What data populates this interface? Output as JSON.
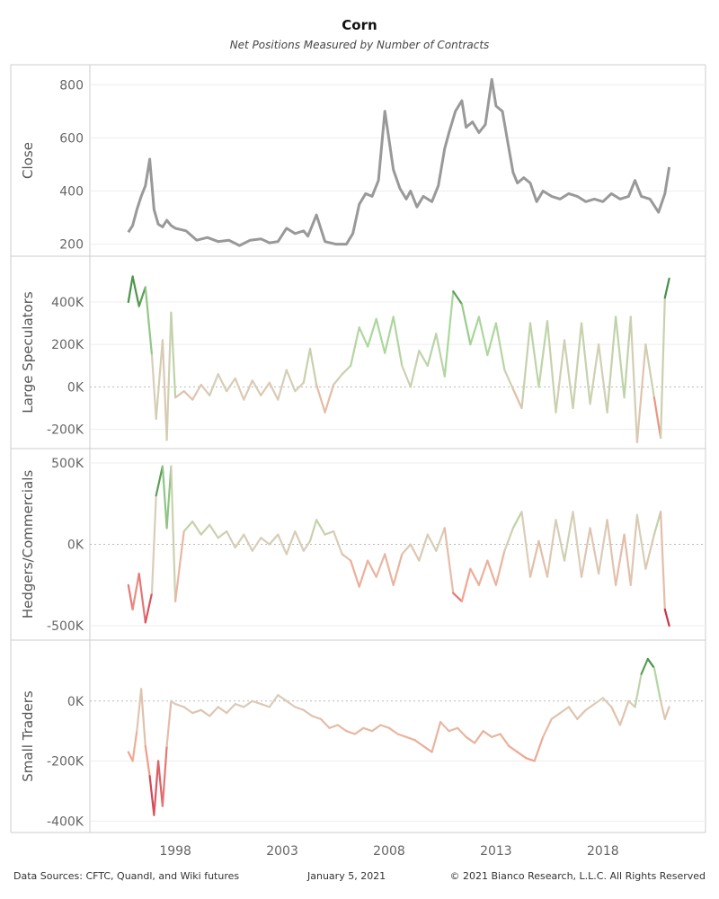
{
  "header": {
    "title": "Corn",
    "subtitle": "Net Positions Measured by Number of Contracts"
  },
  "footer": {
    "sources": "Data Sources: CFTC, Quandl, and Wiki futures",
    "date": "January 5, 2021",
    "copyright": "© 2021 Bianco Research, L.L.C. All Rights Reserved"
  },
  "colors": {
    "close_line": "#999999",
    "positive_dark": "#2e7d32",
    "positive_light": "#a8d89a",
    "neutral": "#d9cdb8",
    "negative_light": "#f2a48f",
    "negative_dark": "#c2163a",
    "gridline": "#eeeeee",
    "zeroline": "#bbbbbb",
    "border": "#cccccc"
  },
  "chart_data": {
    "type": "line",
    "x_axis": {
      "ticks": [
        "1998",
        "2003",
        "2008",
        "2013",
        "2018"
      ],
      "tick_values": [
        1998,
        2003,
        2008,
        2013,
        2018
      ],
      "range": [
        1994.0,
        2022.8
      ]
    },
    "panels": [
      {
        "ylabel": "Close",
        "ylim": [
          175,
          855
        ],
        "yticks": [
          200,
          400,
          600,
          800
        ],
        "ytick_labels": [
          "200",
          "400",
          "600",
          "800"
        ],
        "color_mode": "grey",
        "series": {
          "x": [
            1995.8,
            1996.0,
            1996.2,
            1996.4,
            1996.6,
            1996.8,
            1997.0,
            1997.2,
            1997.4,
            1997.6,
            1997.8,
            1998.0,
            1998.5,
            1999.0,
            1999.5,
            2000.0,
            2000.5,
            2001.0,
            2001.5,
            2002.0,
            2002.4,
            2002.8,
            2003.2,
            2003.6,
            2004.0,
            2004.2,
            2004.6,
            2005.0,
            2005.5,
            2006.0,
            2006.3,
            2006.6,
            2006.9,
            2007.2,
            2007.5,
            2007.8,
            2008.0,
            2008.2,
            2008.5,
            2008.8,
            2009.0,
            2009.3,
            2009.6,
            2010.0,
            2010.3,
            2010.6,
            2010.8,
            2011.1,
            2011.4,
            2011.6,
            2011.9,
            2012.2,
            2012.5,
            2012.8,
            2013.0,
            2013.3,
            2013.6,
            2013.8,
            2014.0,
            2014.3,
            2014.6,
            2014.9,
            2015.2,
            2015.6,
            2016.0,
            2016.4,
            2016.8,
            2017.2,
            2017.6,
            2018.0,
            2018.4,
            2018.8,
            2019.2,
            2019.5,
            2019.8,
            2020.2,
            2020.6,
            2020.9,
            2021.1
          ],
          "y": [
            245,
            270,
            330,
            380,
            420,
            520,
            330,
            275,
            265,
            290,
            270,
            260,
            250,
            215,
            225,
            210,
            215,
            195,
            215,
            220,
            205,
            210,
            260,
            240,
            250,
            230,
            310,
            210,
            200,
            200,
            240,
            350,
            390,
            380,
            440,
            700,
            590,
            480,
            410,
            370,
            400,
            340,
            380,
            360,
            420,
            560,
            620,
            700,
            740,
            640,
            660,
            620,
            650,
            820,
            720,
            700,
            560,
            470,
            430,
            450,
            430,
            360,
            400,
            380,
            370,
            390,
            380,
            360,
            370,
            360,
            390,
            370,
            380,
            440,
            380,
            370,
            320,
            390,
            490
          ]
        }
      },
      {
        "ylabel": "Large Speculators",
        "ylim": [
          -265000,
          590000
        ],
        "yticks": [
          -200000,
          0,
          200000,
          400000
        ],
        "ytick_labels": [
          "-200K",
          "0K",
          "200K",
          "400K"
        ],
        "color_mode": "diverging",
        "series": {
          "x": [
            1995.8,
            1996.0,
            1996.3,
            1996.6,
            1996.9,
            1997.1,
            1997.4,
            1997.6,
            1997.8,
            1998.0,
            1998.4,
            1998.8,
            1999.2,
            1999.6,
            2000.0,
            2000.4,
            2000.8,
            2001.2,
            2001.6,
            2002.0,
            2002.4,
            2002.8,
            2003.2,
            2003.6,
            2004.0,
            2004.3,
            2004.6,
            2005.0,
            2005.4,
            2005.8,
            2006.2,
            2006.6,
            2007.0,
            2007.4,
            2007.8,
            2008.2,
            2008.6,
            2009.0,
            2009.4,
            2009.8,
            2010.2,
            2010.6,
            2011.0,
            2011.4,
            2011.8,
            2012.2,
            2012.6,
            2013.0,
            2013.4,
            2013.8,
            2014.2,
            2014.6,
            2015.0,
            2015.4,
            2015.8,
            2016.2,
            2016.6,
            2017.0,
            2017.4,
            2017.8,
            2018.2,
            2018.6,
            2019.0,
            2019.3,
            2019.6,
            2020.0,
            2020.4,
            2020.7,
            2020.9,
            2021.1
          ],
          "y": [
            400000,
            520000,
            380000,
            470000,
            150000,
            -150000,
            220000,
            -250000,
            350000,
            -50000,
            -20000,
            -60000,
            10000,
            -40000,
            60000,
            -20000,
            40000,
            -60000,
            30000,
            -40000,
            20000,
            -60000,
            80000,
            -20000,
            20000,
            180000,
            10000,
            -120000,
            10000,
            60000,
            100000,
            280000,
            190000,
            320000,
            160000,
            330000,
            100000,
            0,
            170000,
            100000,
            250000,
            50000,
            450000,
            390000,
            200000,
            330000,
            150000,
            300000,
            80000,
            -10000,
            -100000,
            300000,
            0,
            310000,
            -120000,
            220000,
            -100000,
            300000,
            -80000,
            200000,
            -120000,
            330000,
            -50000,
            330000,
            -260000,
            200000,
            -50000,
            -240000,
            420000,
            510000
          ]
        }
      },
      {
        "ylabel": "Hedgers/Commercials",
        "ylim": [
          -555000,
          555000
        ],
        "yticks": [
          -500000,
          0,
          500000
        ],
        "ytick_labels": [
          "-500K",
          "0K",
          "500K"
        ],
        "color_mode": "diverging",
        "series": {
          "x": [
            1995.8,
            1996.0,
            1996.3,
            1996.6,
            1996.9,
            1997.1,
            1997.4,
            1997.6,
            1997.8,
            1998.0,
            1998.4,
            1998.8,
            1999.2,
            1999.6,
            2000.0,
            2000.4,
            2000.8,
            2001.2,
            2001.6,
            2002.0,
            2002.4,
            2002.8,
            2003.2,
            2003.6,
            2004.0,
            2004.3,
            2004.6,
            2005.0,
            2005.4,
            2005.8,
            2006.2,
            2006.6,
            2007.0,
            2007.4,
            2007.8,
            2008.2,
            2008.6,
            2009.0,
            2009.4,
            2009.8,
            2010.2,
            2010.6,
            2011.0,
            2011.4,
            2011.8,
            2012.2,
            2012.6,
            2013.0,
            2013.4,
            2013.8,
            2014.2,
            2014.6,
            2015.0,
            2015.4,
            2015.8,
            2016.2,
            2016.6,
            2017.0,
            2017.4,
            2017.8,
            2018.2,
            2018.6,
            2019.0,
            2019.3,
            2019.6,
            2020.0,
            2020.4,
            2020.7,
            2020.9,
            2021.1
          ],
          "y": [
            -250000,
            -400000,
            -180000,
            -480000,
            -300000,
            300000,
            480000,
            100000,
            480000,
            -350000,
            80000,
            140000,
            60000,
            120000,
            40000,
            80000,
            -20000,
            60000,
            -40000,
            40000,
            0,
            60000,
            -60000,
            80000,
            -40000,
            20000,
            150000,
            60000,
            80000,
            -60000,
            -100000,
            -260000,
            -100000,
            -200000,
            -60000,
            -250000,
            -60000,
            0,
            -100000,
            60000,
            -40000,
            100000,
            -300000,
            -350000,
            -150000,
            -250000,
            -100000,
            -250000,
            -40000,
            100000,
            200000,
            -200000,
            20000,
            -200000,
            150000,
            -100000,
            200000,
            -200000,
            100000,
            -180000,
            150000,
            -250000,
            60000,
            -250000,
            180000,
            -150000,
            60000,
            200000,
            -400000,
            -500000
          ]
        }
      },
      {
        "ylabel": "Small Traders",
        "ylim": [
          -420000,
          185000
        ],
        "yticks": [
          -400000,
          -200000,
          0
        ],
        "ytick_labels": [
          "-400K",
          "-200K",
          "0K"
        ],
        "color_mode": "diverging",
        "series": {
          "x": [
            1995.8,
            1996.0,
            1996.2,
            1996.4,
            1996.6,
            1996.8,
            1997.0,
            1997.2,
            1997.4,
            1997.6,
            1997.8,
            1998.0,
            1998.4,
            1998.8,
            1999.2,
            1999.6,
            2000.0,
            2000.4,
            2000.8,
            2001.2,
            2001.6,
            2002.0,
            2002.4,
            2002.8,
            2003.2,
            2003.6,
            2004.0,
            2004.4,
            2004.8,
            2005.2,
            2005.6,
            2006.0,
            2006.4,
            2006.8,
            2007.2,
            2007.6,
            2008.0,
            2008.4,
            2008.8,
            2009.2,
            2009.6,
            2010.0,
            2010.4,
            2010.8,
            2011.2,
            2011.6,
            2012.0,
            2012.4,
            2012.8,
            2013.2,
            2013.6,
            2014.0,
            2014.4,
            2014.8,
            2015.2,
            2015.6,
            2016.0,
            2016.4,
            2016.8,
            2017.2,
            2017.6,
            2018.0,
            2018.4,
            2018.8,
            2019.2,
            2019.5,
            2019.8,
            2020.1,
            2020.4,
            2020.7,
            2020.9,
            2021.1
          ],
          "y": [
            -170000,
            -200000,
            -100000,
            40000,
            -150000,
            -250000,
            -380000,
            -200000,
            -350000,
            -150000,
            0,
            -10000,
            -20000,
            -40000,
            -30000,
            -50000,
            -20000,
            -40000,
            -10000,
            -20000,
            0,
            -10000,
            -20000,
            20000,
            0,
            -20000,
            -30000,
            -50000,
            -60000,
            -90000,
            -80000,
            -100000,
            -110000,
            -90000,
            -100000,
            -80000,
            -90000,
            -110000,
            -120000,
            -130000,
            -150000,
            -170000,
            -70000,
            -100000,
            -90000,
            -120000,
            -140000,
            -100000,
            -120000,
            -110000,
            -150000,
            -170000,
            -190000,
            -200000,
            -120000,
            -60000,
            -40000,
            -20000,
            -60000,
            -30000,
            -10000,
            10000,
            -20000,
            -80000,
            0,
            -20000,
            90000,
            140000,
            110000,
            0,
            -60000,
            -20000
          ]
        }
      }
    ]
  }
}
